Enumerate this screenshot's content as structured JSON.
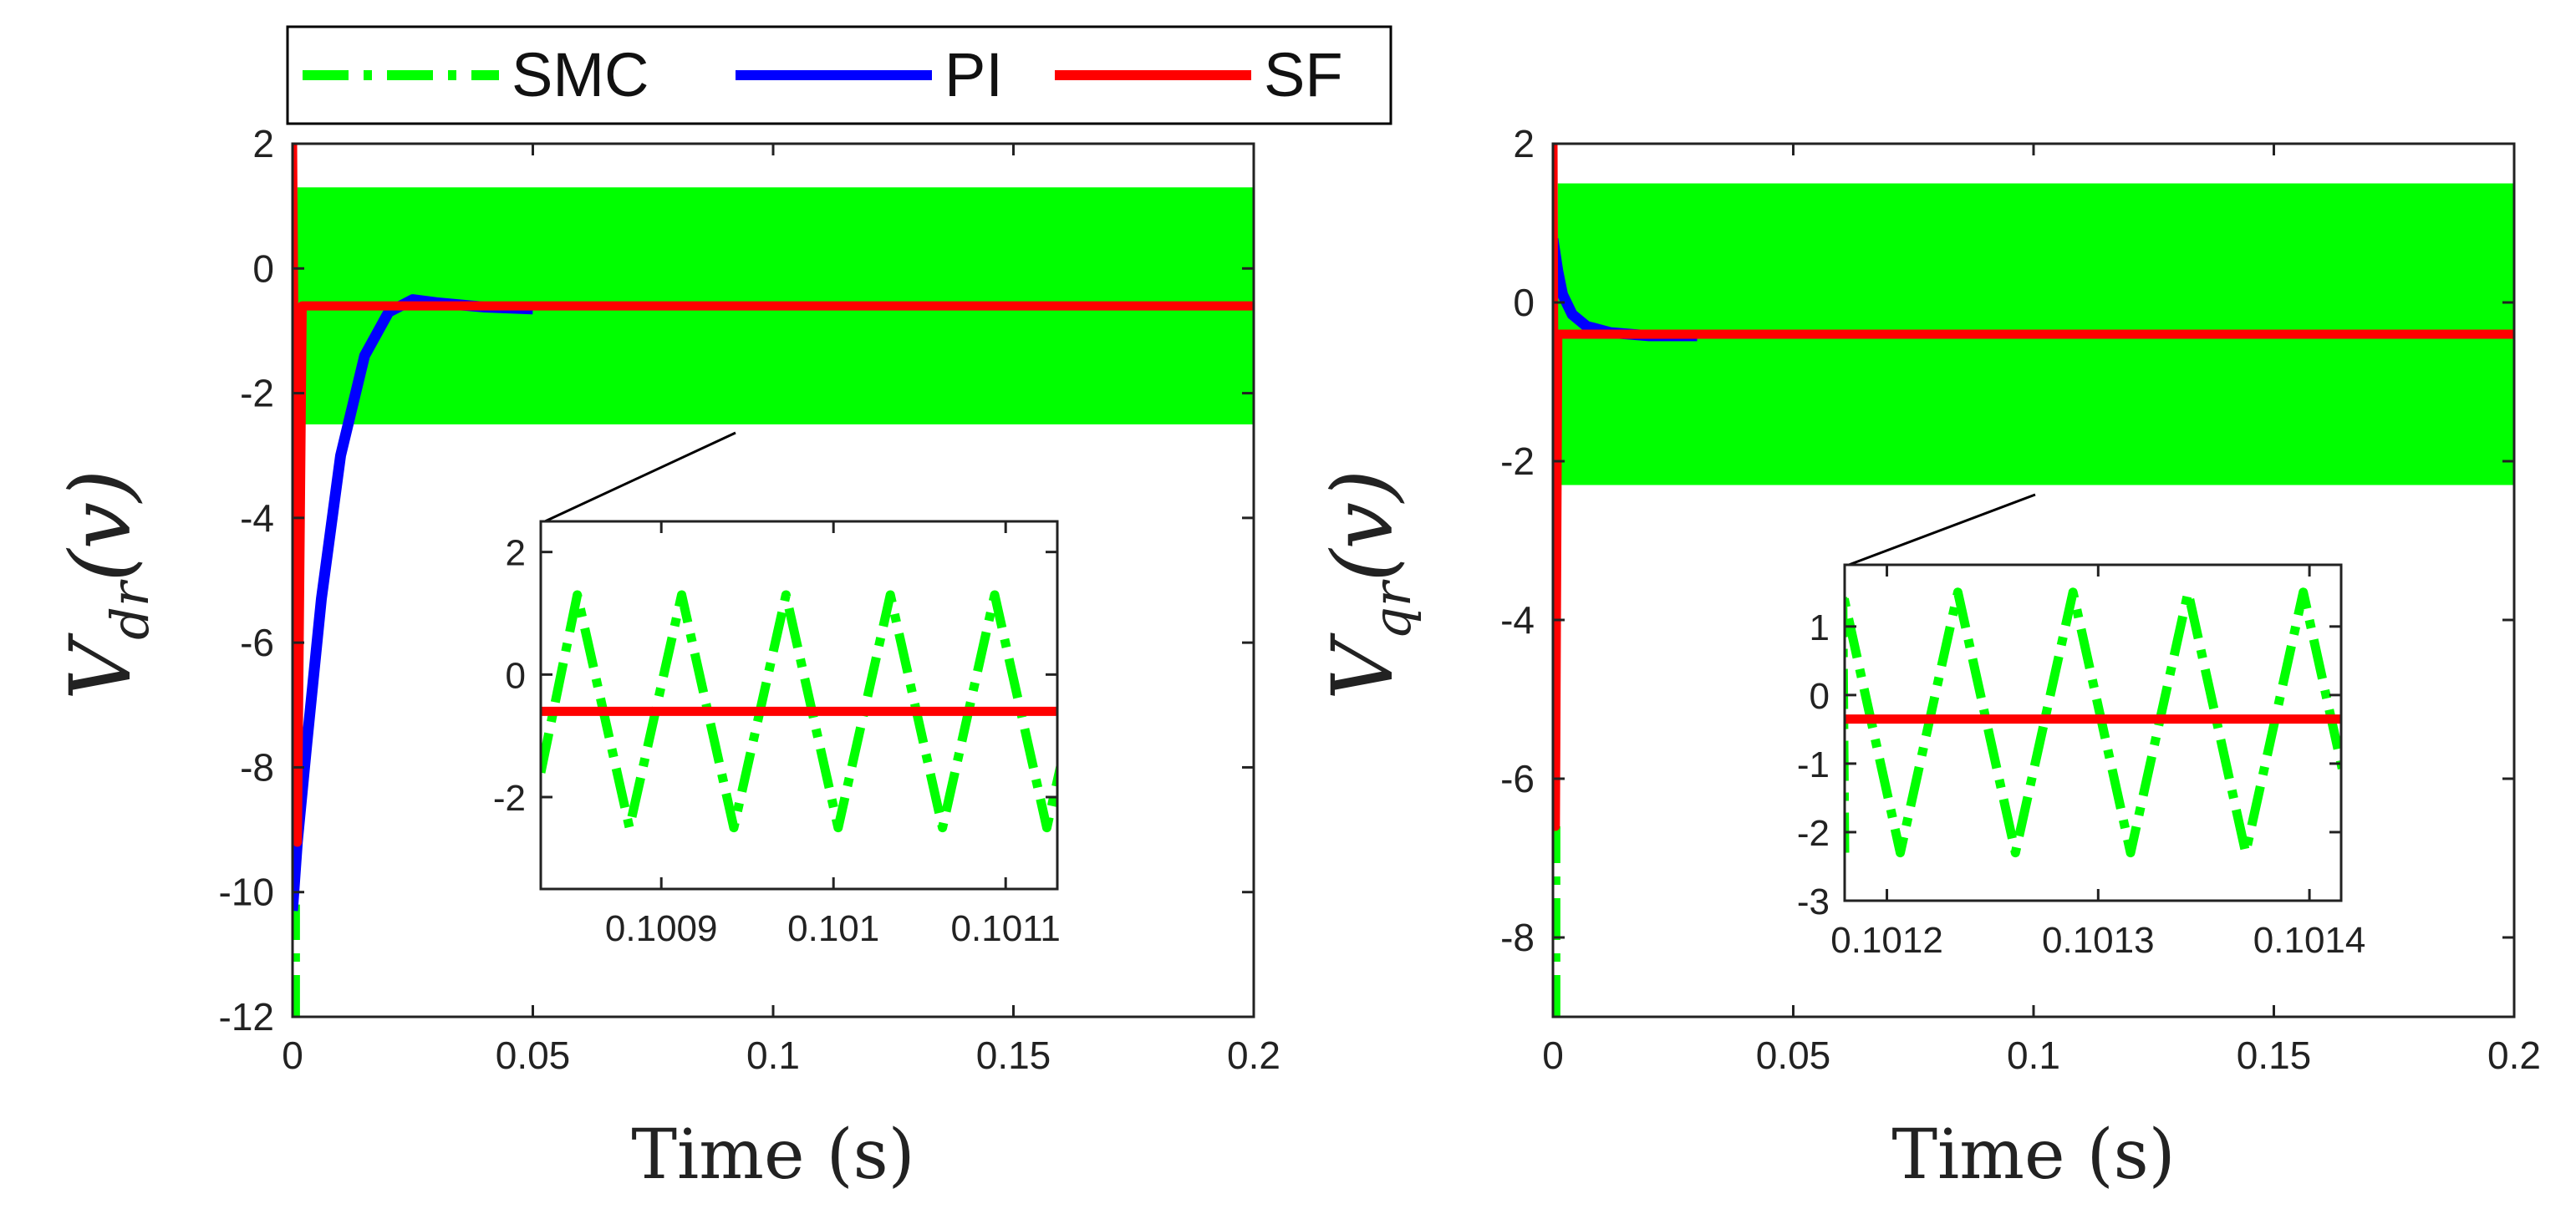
{
  "legend": {
    "entries": [
      {
        "name": "SMC",
        "color": "#00ff00",
        "dash": "dashdot"
      },
      {
        "name": "PI",
        "color": "#0000ff",
        "dash": "solid"
      },
      {
        "name": "SF",
        "color": "#ff0000",
        "dash": "solid"
      }
    ],
    "placement": "top-left, above left plot"
  },
  "chart_data": [
    {
      "type": "line",
      "id": "left",
      "xlabel": "Time (s)",
      "ylabel": {
        "main": "V",
        "sub": "dr",
        "tail": "(v)"
      },
      "xlim": [
        0,
        0.2
      ],
      "ylim": [
        -12,
        2
      ],
      "xticks": [
        0,
        0.05,
        0.1,
        0.15,
        0.2
      ],
      "xticklabels": [
        "0",
        "0.05",
        "0.1",
        "0.15",
        "0.2"
      ],
      "yticks": [
        -12,
        -10,
        -8,
        -6,
        -4,
        -2,
        0,
        2
      ],
      "yticklabels": [
        "-12",
        "-10",
        "-8",
        "-6",
        "-4",
        "-2",
        "0",
        "2"
      ],
      "series": [
        {
          "name": "SMC",
          "band": {
            "x": [
              0.001,
              0.2
            ],
            "ymin": -2.5,
            "ymax": 1.3
          },
          "spike": {
            "x": 0.0005,
            "y": [
              -12,
              -10.2
            ]
          }
        },
        {
          "name": "PI",
          "x": [
            0,
            0.001,
            0.003,
            0.006,
            0.01,
            0.015,
            0.02,
            0.025,
            0.03,
            0.04,
            0.05
          ],
          "y": [
            -10.3,
            -9.2,
            -7.6,
            -5.3,
            -3.0,
            -1.4,
            -0.7,
            -0.5,
            -0.55,
            -0.62,
            -0.65
          ]
        },
        {
          "name": "SF",
          "x": [
            0,
            0.001,
            0.002,
            0.003,
            0.2
          ],
          "y": [
            2,
            -9.2,
            -0.6,
            -0.6,
            -0.6
          ]
        }
      ],
      "inset": {
        "xlim": [
          0.10083,
          0.10113
        ],
        "ylim": [
          -3.5,
          2.5
        ],
        "xticks": [
          0.1009,
          0.101,
          0.1011
        ],
        "xticklabels": [
          "0.1009",
          "0.101",
          "0.1011"
        ],
        "yticks": [
          -2,
          0,
          2
        ],
        "yticklabels": [
          "-2",
          "0",
          "2"
        ],
        "smc": {
          "period": 6.06e-05,
          "phase": 0.10083,
          "low": -1.6,
          "high": 1.3,
          "min": -2.5,
          "peaks": 5
        },
        "sf": -0.6
      }
    },
    {
      "type": "line",
      "id": "right",
      "xlabel": "Time (s)",
      "ylabel": {
        "main": "V",
        "sub": "qr",
        "tail": "(v)"
      },
      "xlim": [
        0,
        0.2
      ],
      "ylim": [
        -9,
        2
      ],
      "xticks": [
        0,
        0.05,
        0.1,
        0.15,
        0.2
      ],
      "xticklabels": [
        "0",
        "0.05",
        "0.1",
        "0.15",
        "0.2"
      ],
      "yticks": [
        -8,
        -6,
        -4,
        -2,
        0,
        2
      ],
      "yticklabels": [
        "-8",
        "-6",
        "-4",
        "-2",
        "0",
        "2"
      ],
      "series": [
        {
          "name": "SMC",
          "band": {
            "x": [
              0.001,
              0.2
            ],
            "ymin": -2.3,
            "ymax": 1.5
          },
          "spike": {
            "x": 0.0005,
            "y": [
              -9,
              -6.6
            ]
          }
        },
        {
          "name": "PI",
          "x": [
            0,
            0.001,
            0.002,
            0.004,
            0.007,
            0.012,
            0.02,
            0.03
          ],
          "y": [
            0.8,
            0.4,
            0.1,
            -0.15,
            -0.3,
            -0.38,
            -0.42,
            -0.42
          ]
        },
        {
          "name": "SF",
          "x": [
            0,
            0.0005,
            0.001,
            0.002,
            0.2
          ],
          "y": [
            2,
            -6.6,
            -0.4,
            -0.4,
            -0.4
          ]
        }
      ],
      "inset": {
        "xlim": [
          0.10118,
          0.101415
        ],
        "ylim": [
          -3,
          1.9
        ],
        "xticks": [
          0.1012,
          0.1013,
          0.1014
        ],
        "xticklabels": [
          "0.1012",
          "0.1013",
          "0.1014"
        ],
        "yticks": [
          -3,
          -2,
          -1,
          0,
          1
        ],
        "yticklabels": [
          "-3",
          "-2",
          "-1",
          "0",
          "1"
        ],
        "smc": {
          "period": 5.45e-05,
          "phase": 0.10116,
          "low": -2.3,
          "high": 1.5,
          "peaks": 4
        },
        "sf": -0.35
      }
    }
  ]
}
